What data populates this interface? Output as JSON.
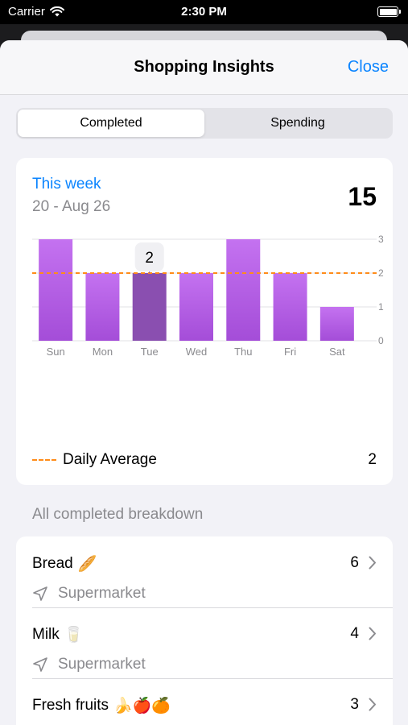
{
  "status_bar": {
    "carrier": "Carrier",
    "time": "2:30 PM"
  },
  "nav": {
    "title": "Shopping Insights",
    "close_label": "Close"
  },
  "segments": [
    {
      "label": "Completed",
      "active": true
    },
    {
      "label": "Spending",
      "active": false
    }
  ],
  "summary": {
    "period": "This week",
    "range": "20 - Aug 26",
    "total": "15"
  },
  "chart_data": {
    "type": "bar",
    "categories": [
      "Sun",
      "Mon",
      "Tue",
      "Wed",
      "Thu",
      "Fri",
      "Sat"
    ],
    "values": [
      3,
      2,
      2,
      2,
      3,
      2,
      1
    ],
    "ylim": [
      0,
      3
    ],
    "yticks": [
      0,
      1,
      2,
      3
    ],
    "average": 2,
    "selected_index": 2,
    "tooltip": "2",
    "grid": true,
    "title": "",
    "xlabel": "",
    "ylabel": "",
    "bar_color": "#c472f0",
    "bar_color_bottom": "#a44dd8",
    "selected_color": "#8a4fb0",
    "average_color": "#ff8c1a"
  },
  "legend": {
    "label": "Daily Average",
    "value": "2"
  },
  "breakdown": {
    "header": "All completed breakdown",
    "items": [
      {
        "title": "Bread",
        "emoji": "🥖",
        "count": "6",
        "store": "Supermarket"
      },
      {
        "title": "Milk",
        "emoji": "🥛",
        "count": "4",
        "store": "Supermarket"
      },
      {
        "title": "Fresh fruits",
        "emoji": "🍌🍎🍊",
        "count": "3",
        "store": ""
      }
    ]
  },
  "colors": {
    "accent": "#0a84ff",
    "secondary_text": "#8a8a8e",
    "sheet_bg": "#f2f2f7"
  }
}
